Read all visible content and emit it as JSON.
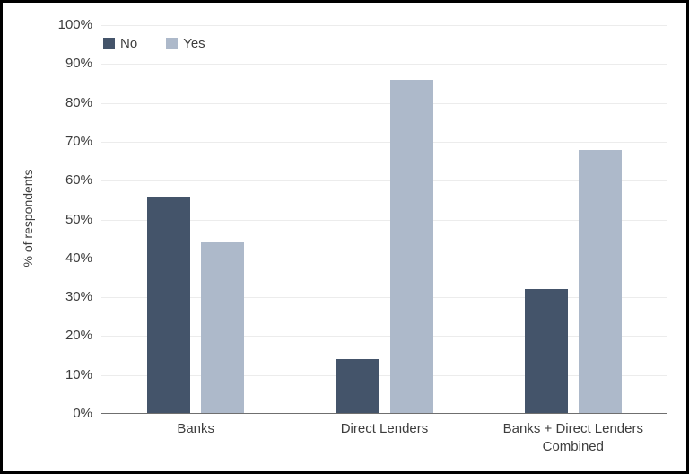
{
  "chart_data": {
    "type": "bar",
    "title": "",
    "categories": [
      "Banks",
      "Direct Lenders",
      "Banks + Direct Lenders\nCombined"
    ],
    "series": [
      {
        "name": "No",
        "color": "#44546A",
        "values": [
          56,
          14,
          32
        ]
      },
      {
        "name": "Yes",
        "color": "#ADB9CA",
        "values": [
          44,
          86,
          68
        ]
      }
    ],
    "xlabel": "",
    "ylabel": "% of respondents",
    "ylim": [
      0,
      100
    ],
    "ytick_labels": [
      "0%",
      "10%",
      "20%",
      "30%",
      "40%",
      "50%",
      "60%",
      "70%",
      "80%",
      "90%",
      "100%"
    ],
    "grid": "horizontal",
    "legend_position": "top-left",
    "colors": {
      "axis_line": "#6F6F6F",
      "gridline": "#ECECEC",
      "text": "#3D3D3D",
      "background": "#FFFFFF",
      "frame_border": "#000000"
    }
  }
}
